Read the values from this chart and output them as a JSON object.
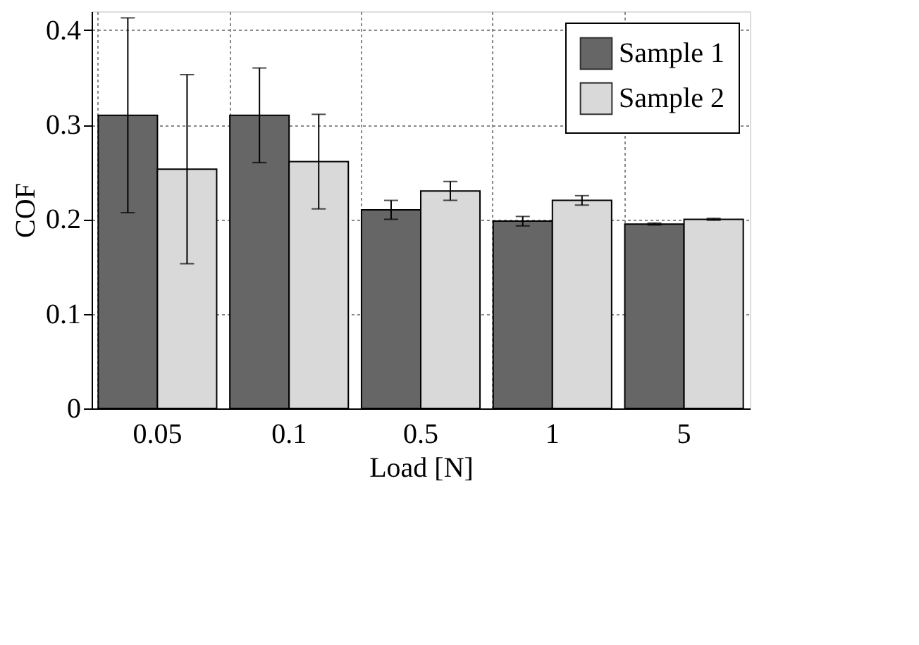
{
  "chart_data": {
    "type": "bar",
    "xlabel": "Load [N]",
    "ylabel": "COF",
    "categories": [
      "0.05",
      "0.1",
      "0.5",
      "1",
      "5"
    ],
    "series": [
      {
        "name": "Sample 1",
        "color": "#666666",
        "values": [
          0.31,
          0.31,
          0.21,
          0.198,
          0.195
        ],
        "errors": [
          0.103,
          0.05,
          0.01,
          0.005,
          0.001
        ]
      },
      {
        "name": "Sample 2",
        "color": "#d9d9d9",
        "values": [
          0.253,
          0.261,
          0.23,
          0.22,
          0.2
        ],
        "errors": [
          0.1,
          0.05,
          0.01,
          0.005,
          0.001
        ]
      }
    ],
    "ylim": [
      0,
      0.42
    ],
    "yticks": [
      0,
      0.1,
      0.2,
      0.3,
      0.4
    ],
    "grid": true,
    "legend": "top right"
  }
}
